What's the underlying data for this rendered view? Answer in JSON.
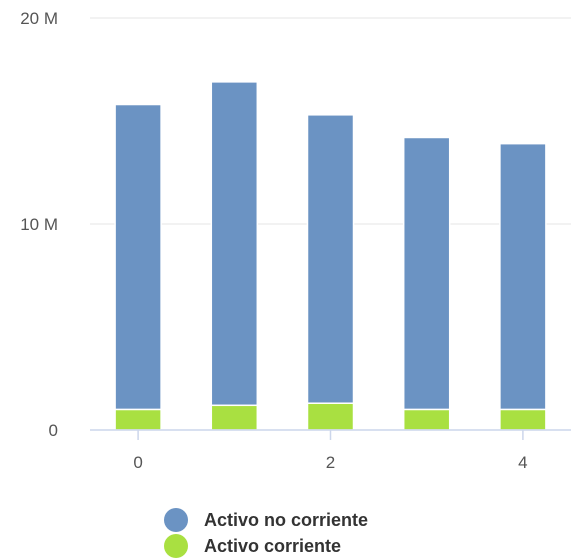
{
  "chart_data": {
    "type": "bar",
    "stacked": true,
    "x": [
      0,
      1,
      2,
      3,
      4
    ],
    "x_tick_labels": [
      "0",
      "2",
      "4"
    ],
    "y_tick_labels": [
      "0",
      "10 M",
      "20 M"
    ],
    "ylim": [
      0,
      20000000
    ],
    "grid": true,
    "legend_position": "bottom-center",
    "series": [
      {
        "name": "Activo corriente",
        "color": "#a9e041",
        "values": [
          1000000,
          1200000,
          1300000,
          1000000,
          1000000
        ]
      },
      {
        "name": "Activo no corriente",
        "color": "#6b93c3",
        "values": [
          14800000,
          15700000,
          14000000,
          13200000,
          12900000
        ]
      }
    ]
  },
  "legend": {
    "items": [
      {
        "label": "Activo no corriente",
        "color": "#6b93c3"
      },
      {
        "label": "Activo corriente",
        "color": "#a9e041"
      }
    ]
  }
}
